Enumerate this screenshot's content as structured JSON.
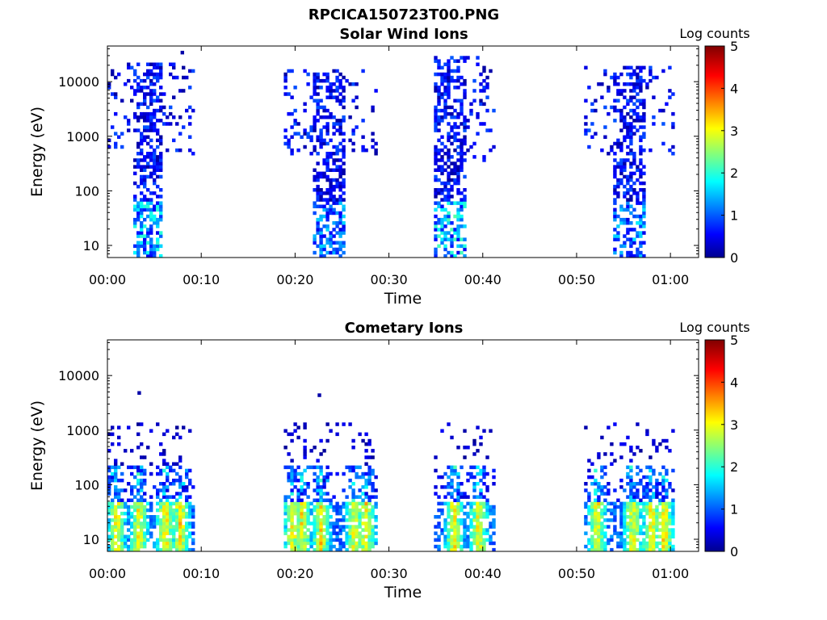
{
  "figure_title": "RPCICA150723T00.PNG",
  "chart_data": [
    {
      "type": "heatmap",
      "title": "Solar Wind Ions",
      "xlabel": "Time",
      "ylabel": "Energy (eV)",
      "yscale": "log",
      "xlim_minutes": [
        0,
        63
      ],
      "ylim": [
        6,
        45000
      ],
      "x_ticks": [
        "00:00",
        "00:10",
        "00:20",
        "00:30",
        "00:40",
        "00:50",
        "01:00"
      ],
      "y_ticks": [
        "10",
        "100",
        "1000",
        "10000"
      ],
      "colorbar": {
        "label": "Log counts",
        "range": [
          0,
          5
        ],
        "ticks": [
          "0",
          "1",
          "2",
          "3",
          "4",
          "5"
        ],
        "colormap": "jet"
      },
      "clusters": [
        {
          "dense_start_min": 2.6,
          "dense_end_min": 5.8,
          "sparse_start_min": 0.0,
          "sparse_end_min": 9.0,
          "sparse_emin_ev": 400,
          "emax_ev": 20000,
          "peak_log_counts": 2.0,
          "seed": 11
        },
        {
          "dense_start_min": 21.8,
          "dense_end_min": 25.0,
          "sparse_start_min": 18.8,
          "sparse_end_min": 28.5,
          "sparse_emin_ev": 400,
          "emax_ev": 15000,
          "peak_log_counts": 1.6,
          "seed": 23
        },
        {
          "dense_start_min": 34.8,
          "dense_end_min": 38.2,
          "sparse_start_min": 34.8,
          "sparse_end_min": 41.0,
          "sparse_emin_ev": 300,
          "emax_ev": 28000,
          "peak_log_counts": 2.2,
          "seed": 37
        },
        {
          "dense_start_min": 53.6,
          "dense_end_min": 57.2,
          "sparse_start_min": 50.8,
          "sparse_end_min": 60.2,
          "sparse_emin_ev": 400,
          "emax_ev": 18000,
          "peak_log_counts": 1.7,
          "seed": 51
        }
      ],
      "outliers": [
        {
          "t_min": 7.8,
          "e_ev": 32000
        }
      ]
    },
    {
      "type": "heatmap",
      "title": "Cometary Ions",
      "xlabel": "Time",
      "ylabel": "Energy (eV)",
      "yscale": "log",
      "xlim_minutes": [
        0,
        63
      ],
      "ylim": [
        6,
        45000
      ],
      "x_ticks": [
        "00:00",
        "00:10",
        "00:20",
        "00:30",
        "00:40",
        "00:50",
        "01:00"
      ],
      "y_ticks": [
        "10",
        "100",
        "1000",
        "10000"
      ],
      "colorbar": {
        "label": "Log counts",
        "range": [
          0,
          5
        ],
        "ticks": [
          "0",
          "1",
          "2",
          "3",
          "4",
          "5"
        ],
        "colormap": "jet"
      },
      "intervals_min": [
        [
          0.0,
          9.0
        ],
        [
          18.8,
          28.5
        ],
        [
          34.8,
          41.0
        ],
        [
          50.8,
          60.2
        ]
      ],
      "band_ev": [
        6,
        45
      ],
      "band_peak_log_counts": 3.2,
      "scatter_emax_ev": 1200,
      "spike_times_min": [
        0.8,
        3.2,
        6.0,
        7.6,
        19.6,
        20.6,
        22.6,
        26.2,
        27.4,
        36.8,
        39.4,
        52.0,
        55.8,
        57.8,
        59.2
      ],
      "outliers": [
        {
          "t_min": 3.2,
          "e_ev": 4500
        },
        {
          "t_min": 22.4,
          "e_ev": 4100
        }
      ]
    }
  ]
}
